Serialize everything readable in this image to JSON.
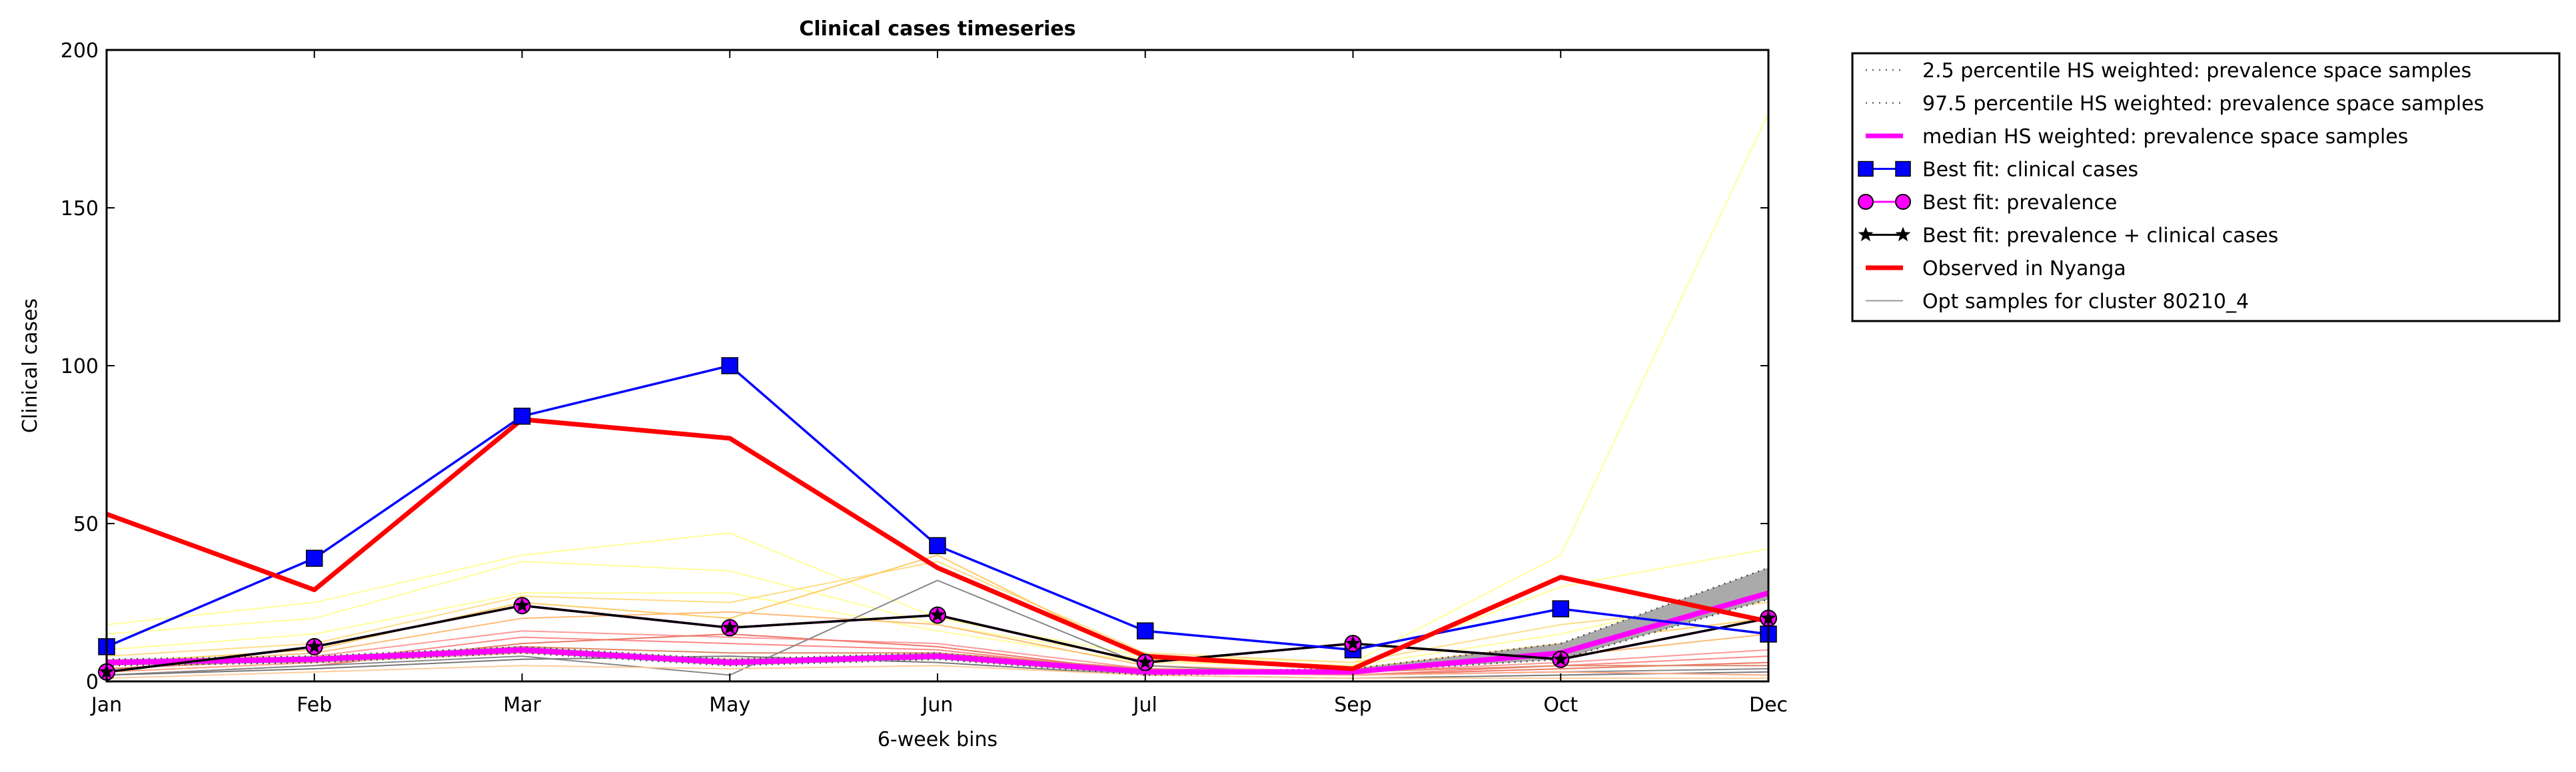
{
  "chart_data": {
    "type": "line",
    "title": "Clinical cases timeseries",
    "xlabel": "6-week bins",
    "ylabel": "Clinical cases",
    "categories": [
      "Jan",
      "Feb",
      "Mar",
      "May",
      "Jun",
      "Jul",
      "Sep",
      "Oct",
      "Dec"
    ],
    "ylim": [
      0,
      200
    ],
    "yticks": [
      "0",
      "50",
      "100",
      "150",
      "200"
    ],
    "grid": false,
    "legend_position": "outside-right",
    "legend": [
      {
        "label": "2.5 percentile HS weighted: prevalence space samples",
        "style": "dotted",
        "color": "#666666"
      },
      {
        "label": "97.5 percentile HS weighted: prevalence space samples",
        "style": "dotted",
        "color": "#666666"
      },
      {
        "label": "median HS weighted: prevalence space samples",
        "style": "thick",
        "color": "#ff00ff"
      },
      {
        "label": "Best fit: clinical cases",
        "style": "square-marker",
        "color": "#0000ff"
      },
      {
        "label": "Best fit: prevalence",
        "style": "circle-marker",
        "color": "#ff00ff"
      },
      {
        "label": "Best fit: prevalence + clinical cases",
        "style": "star-marker",
        "color": "#000000"
      },
      {
        "label": "Observed in Nyanga",
        "style": "thick",
        "color": "#ff0000"
      },
      {
        "label": "Opt samples for cluster 80210_4",
        "style": "thin",
        "color": "#999999"
      }
    ],
    "band": {
      "name": "2.5-97.5 percentile HS weighted",
      "lower": [
        5,
        6,
        9,
        5,
        7,
        2,
        3,
        7,
        26
      ],
      "upper": [
        7,
        8,
        11,
        7,
        9,
        3,
        4,
        12,
        36
      ],
      "color": "#aaaaaa"
    },
    "series": [
      {
        "name": "median HS weighted: prevalence space samples",
        "values": [
          6,
          7,
          10,
          6,
          8,
          3,
          3,
          9,
          28
        ],
        "color": "#ff00ff"
      },
      {
        "name": "Best fit: clinical cases",
        "values": [
          11,
          39,
          84,
          100,
          43,
          16,
          10,
          23,
          15
        ],
        "color": "#0000ff"
      },
      {
        "name": "Best fit: prevalence",
        "values": [
          3,
          11,
          24,
          17,
          21,
          6,
          12,
          7,
          20
        ],
        "color": "#ff00ff"
      },
      {
        "name": "Best fit: prevalence + clinical cases",
        "values": [
          3,
          11,
          24,
          17,
          21,
          6,
          12,
          7,
          20
        ],
        "color": "#000000"
      },
      {
        "name": "Observed in Nyanga",
        "values": [
          53,
          29,
          83,
          77,
          36,
          8,
          4,
          33,
          19
        ],
        "color": "#ff0000"
      }
    ],
    "samples": [
      {
        "color": "#ffff99",
        "values": [
          18,
          25,
          40,
          47,
          20,
          8,
          6,
          40,
          180
        ]
      },
      {
        "color": "#ffff99",
        "values": [
          15,
          20,
          38,
          35,
          18,
          7,
          5,
          30,
          42
        ]
      },
      {
        "color": "#ffff99",
        "values": [
          10,
          15,
          28,
          28,
          16,
          6,
          5,
          15,
          30
        ]
      },
      {
        "color": "#ffdd88",
        "values": [
          8,
          12,
          27,
          25,
          38,
          9,
          6,
          18,
          25
        ]
      },
      {
        "color": "#ffcc66",
        "values": [
          6,
          10,
          25,
          20,
          40,
          7,
          4,
          12,
          20
        ]
      },
      {
        "color": "#ffbb77",
        "values": [
          5,
          9,
          20,
          22,
          18,
          5,
          3,
          8,
          15
        ]
      },
      {
        "color": "#ff9999",
        "values": [
          4,
          8,
          16,
          14,
          12,
          4,
          3,
          6,
          10
        ]
      },
      {
        "color": "#ff8888",
        "values": [
          3,
          6,
          14,
          12,
          10,
          3,
          2,
          5,
          8
        ]
      },
      {
        "color": "#ee7766",
        "values": [
          2,
          5,
          12,
          15,
          11,
          3,
          2,
          4,
          6
        ]
      },
      {
        "color": "#dd8866",
        "values": [
          4,
          7,
          11,
          9,
          9,
          4,
          3,
          5,
          5
        ]
      },
      {
        "color": "#888888",
        "values": [
          2,
          5,
          8,
          2,
          32,
          5,
          2,
          3,
          4
        ]
      },
      {
        "color": "#777777",
        "values": [
          2,
          4,
          7,
          8,
          6,
          2,
          1,
          2,
          3
        ]
      },
      {
        "color": "#ffaa88",
        "values": [
          3,
          6,
          9,
          7,
          8,
          3,
          2,
          3,
          2
        ]
      },
      {
        "color": "#ffcc99",
        "values": [
          1,
          3,
          5,
          4,
          5,
          2,
          1,
          1,
          1
        ]
      }
    ]
  }
}
